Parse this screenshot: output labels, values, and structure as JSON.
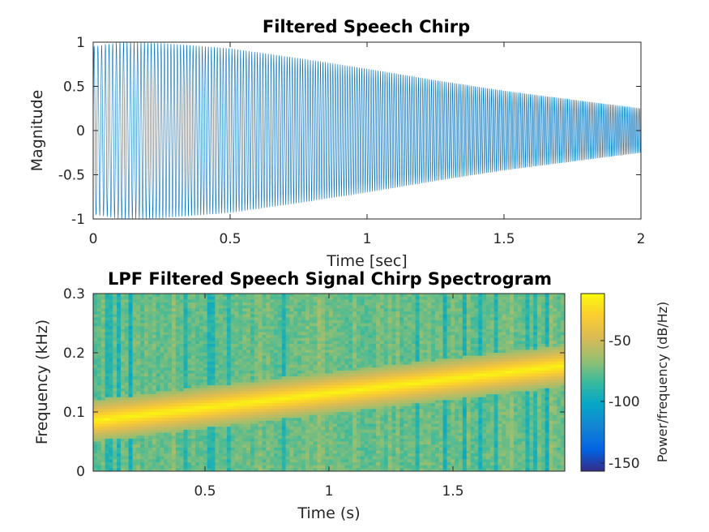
{
  "chart_data": [
    {
      "type": "line",
      "title": "Filtered Speech Chirp",
      "xlabel": "Time [sec]",
      "ylabel": "Magnitude",
      "xlim": [
        0,
        2
      ],
      "ylim": [
        -1,
        1
      ],
      "x_ticks": [
        "0",
        "0.5",
        "1",
        "1.5",
        "2"
      ],
      "y_ticks": [
        "1",
        "0.5",
        "0",
        "-0.5",
        "-1"
      ],
      "grid": false,
      "color": "#0072BD",
      "envelope": {
        "t": [
          0,
          0.1,
          0.25,
          0.5,
          0.75,
          1.0,
          1.25,
          1.5,
          1.75,
          2.0
        ],
        "amplitude": [
          0.95,
          1.0,
          0.99,
          0.93,
          0.82,
          0.7,
          0.57,
          0.45,
          0.35,
          0.25
        ]
      },
      "chirp_frequency_hz": [
        80,
        180
      ]
    },
    {
      "type": "heatmap",
      "title": "LPF Filtered Speech Signal Chirp Spectrogram",
      "xlabel": "Time (s)",
      "ylabel": "Frequency (kHz)",
      "xlim": [
        0.05,
        1.95
      ],
      "ylim": [
        0,
        0.3
      ],
      "x_ticks": [
        "0.5",
        "1",
        "1.5"
      ],
      "y_ticks": [
        "0.3",
        "0.2",
        "0.1",
        "0"
      ],
      "ridge": {
        "t": [
          0.05,
          1.95
        ],
        "f_khz": [
          0.085,
          0.178
        ]
      },
      "colorbar": {
        "label": "Power/frequency (dB/Hz)",
        "ticks": [
          "-50",
          "-100",
          "-150"
        ],
        "range": [
          -160,
          -15
        ],
        "colormap": "parula"
      }
    }
  ]
}
